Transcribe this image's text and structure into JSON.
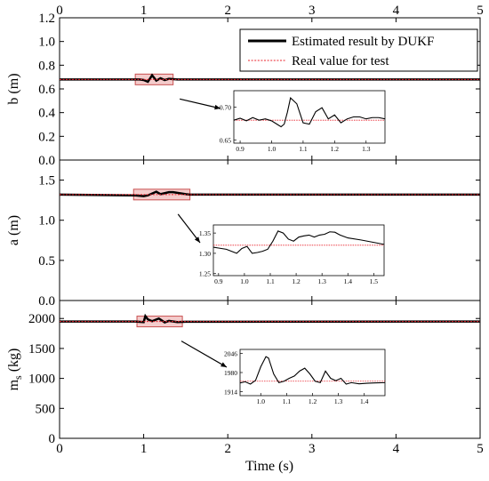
{
  "colors": {
    "estimate": "#000000",
    "real": "#e8202a",
    "zoom_box_fill": "#f4cccc",
    "zoom_box_stroke": "#c85050"
  },
  "legend": {
    "estimate_label": "Estimated result by DUKF",
    "real_label": "Real value for test",
    "placement": "top-right of first panel"
  },
  "xaxis": {
    "label": "Time (s)",
    "range": [
      0,
      5
    ],
    "ticks": [
      "0",
      "1",
      "2",
      "3",
      "4",
      "5"
    ]
  },
  "chart_data": [
    {
      "type": "line",
      "panel": "b",
      "ylabel": "b (m)",
      "ylim": [
        0.0,
        1.2
      ],
      "yticks": [
        "0.0",
        "0.2",
        "0.4",
        "0.6",
        "0.8",
        "1.0",
        "1.2"
      ],
      "real_value": 0.68,
      "series": [
        {
          "name": "Estimated result by DUKF",
          "x": [
            0,
            0.9,
            0.95,
            1.0,
            1.05,
            1.1,
            1.15,
            1.2,
            1.25,
            1.3,
            1.4,
            5
          ],
          "y": [
            0.68,
            0.68,
            0.68,
            0.675,
            0.66,
            0.715,
            0.67,
            0.69,
            0.675,
            0.685,
            0.68,
            0.68
          ]
        },
        {
          "name": "Real value for test",
          "x": [
            0,
            5
          ],
          "y": [
            0.68,
            0.68
          ]
        }
      ],
      "zoom_region": {
        "x": [
          0.9,
          1.35
        ]
      },
      "inset": {
        "xticks": [
          "0.9",
          "1.0",
          "1.1",
          "1.2",
          "1.3"
        ],
        "xlim": [
          0.88,
          1.36
        ],
        "yticks": [
          "0.65",
          "0.70"
        ],
        "ylim": [
          0.645,
          0.725
        ],
        "real_value": 0.68,
        "x": [
          0.88,
          0.9,
          0.92,
          0.94,
          0.96,
          0.98,
          1.0,
          1.02,
          1.03,
          1.04,
          1.05,
          1.06,
          1.08,
          1.1,
          1.12,
          1.14,
          1.16,
          1.18,
          1.2,
          1.22,
          1.24,
          1.26,
          1.28,
          1.3,
          1.32,
          1.34,
          1.36
        ],
        "y": [
          0.68,
          0.683,
          0.679,
          0.684,
          0.68,
          0.682,
          0.679,
          0.673,
          0.67,
          0.674,
          0.692,
          0.714,
          0.705,
          0.676,
          0.674,
          0.693,
          0.699,
          0.682,
          0.688,
          0.676,
          0.682,
          0.685,
          0.685,
          0.682,
          0.684,
          0.684,
          0.682
        ]
      }
    },
    {
      "type": "line",
      "panel": "a",
      "ylabel": "a (m)",
      "ylim": [
        0.0,
        1.75
      ],
      "yticks": [
        "0.0",
        "0.5",
        "1.0",
        "1.5"
      ],
      "real_value": 1.32,
      "series": [
        {
          "name": "Estimated result by DUKF",
          "x": [
            0,
            0.9,
            1.0,
            1.05,
            1.15,
            1.2,
            1.3,
            1.35,
            1.5,
            1.55,
            5
          ],
          "y": [
            1.32,
            1.31,
            1.3,
            1.31,
            1.355,
            1.325,
            1.35,
            1.35,
            1.325,
            1.32,
            1.32
          ]
        },
        {
          "name": "Real value for test",
          "x": [
            0,
            5
          ],
          "y": [
            1.32,
            1.32
          ]
        }
      ],
      "zoom_region": {
        "x": [
          0.88,
          1.55
        ]
      },
      "inset": {
        "xticks": [
          "0.9",
          "1.0",
          "1.1",
          "1.2",
          "1.3",
          "1.4",
          "1.5"
        ],
        "xlim": [
          0.88,
          1.54
        ],
        "yticks": [
          "1.25",
          "1.30",
          "1.35"
        ],
        "ylim": [
          1.245,
          1.37
        ],
        "real_value": 1.32,
        "x": [
          0.88,
          0.9,
          0.93,
          0.95,
          0.97,
          0.99,
          1.01,
          1.03,
          1.05,
          1.07,
          1.09,
          1.11,
          1.13,
          1.15,
          1.17,
          1.19,
          1.21,
          1.23,
          1.25,
          1.27,
          1.29,
          1.31,
          1.33,
          1.35,
          1.37,
          1.4,
          1.45,
          1.5,
          1.54
        ],
        "y": [
          1.315,
          1.313,
          1.31,
          1.305,
          1.3,
          1.312,
          1.317,
          1.3,
          1.302,
          1.305,
          1.31,
          1.33,
          1.355,
          1.35,
          1.335,
          1.33,
          1.34,
          1.343,
          1.345,
          1.34,
          1.345,
          1.347,
          1.353,
          1.352,
          1.345,
          1.338,
          1.333,
          1.327,
          1.322
        ]
      }
    },
    {
      "type": "line",
      "panel": "ms",
      "ylabel": "m_s (kg)",
      "ylim": [
        0,
        2300
      ],
      "yticks": [
        "0",
        "500",
        "1000",
        "1500",
        "2000"
      ],
      "real_value": 1950,
      "series": [
        {
          "name": "Estimated result by DUKF",
          "x": [
            0,
            0.9,
            1.0,
            1.02,
            1.05,
            1.1,
            1.18,
            1.25,
            1.3,
            1.4,
            1.5,
            5
          ],
          "y": [
            1950,
            1950,
            1940,
            2040,
            1985,
            1955,
            2000,
            1935,
            1960,
            1940,
            1945,
            1950
          ]
        },
        {
          "name": "Real value for test",
          "x": [
            0,
            5
          ],
          "y": [
            1950,
            1950
          ]
        }
      ],
      "zoom_region": {
        "x": [
          0.92,
          1.46
        ]
      },
      "inset": {
        "xticks": [
          "1.0",
          "1.1",
          "1.2",
          "1.3",
          "1.4"
        ],
        "xlim": [
          0.92,
          1.48
        ],
        "yticks": [
          "1914",
          "1980",
          "2046"
        ],
        "ylim": [
          1900,
          2060
        ],
        "real_value": 1950,
        "x": [
          0.92,
          0.94,
          0.96,
          0.98,
          1.0,
          1.02,
          1.03,
          1.05,
          1.07,
          1.09,
          1.11,
          1.13,
          1.15,
          1.17,
          1.19,
          1.21,
          1.23,
          1.25,
          1.27,
          1.29,
          1.31,
          1.33,
          1.35,
          1.38,
          1.41,
          1.44,
          1.48
        ],
        "y": [
          1944,
          1948,
          1940,
          1953,
          2000,
          2035,
          2030,
          1975,
          1945,
          1950,
          1960,
          1968,
          1985,
          1995,
          1975,
          1950,
          1945,
          1985,
          1960,
          1952,
          1960,
          1940,
          1945,
          1941,
          1943,
          1944,
          1945
        ]
      }
    }
  ]
}
